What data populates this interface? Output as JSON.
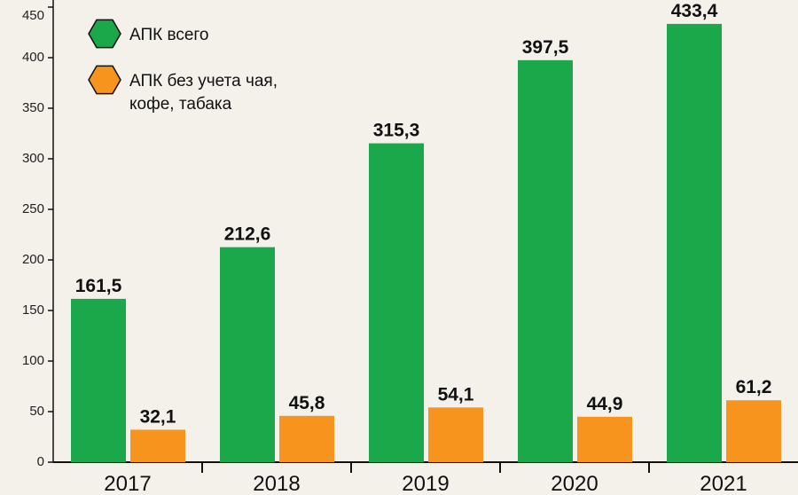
{
  "chart_data": {
    "type": "bar",
    "categories": [
      "2017",
      "2018",
      "2019",
      "2020",
      "2021"
    ],
    "series": [
      {
        "name": "АПК всего",
        "color": "#1aa84a",
        "values": [
          161.5,
          212.6,
          315.3,
          397.5,
          433.4
        ],
        "value_labels": [
          "161,5",
          "212,6",
          "315,3",
          "397,5",
          "433,4"
        ]
      },
      {
        "name": "АПК без учета чая, кофе, табака",
        "color": "#f7941d",
        "values": [
          32.1,
          45.8,
          54.1,
          44.9,
          61.2
        ],
        "value_labels": [
          "32,1",
          "45,8",
          "54,1",
          "44,9",
          "61,2"
        ]
      }
    ],
    "ylim": [
      0,
      450
    ],
    "yticks": [
      0,
      50,
      100,
      150,
      200,
      250,
      300,
      350,
      400,
      450
    ],
    "legend": "top-left"
  }
}
